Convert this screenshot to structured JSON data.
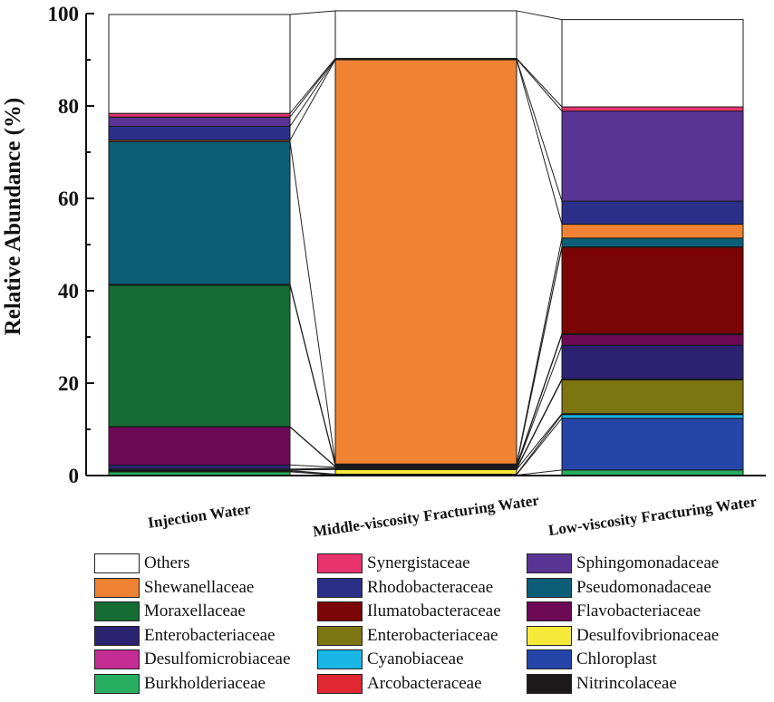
{
  "chart_data": {
    "type": "stacked-bar",
    "ylabel": "Relative Abundance (%)",
    "xlabel": "",
    "ylim": [
      0,
      100
    ],
    "yticks": [
      "0",
      "20",
      "40",
      "60",
      "80",
      "100"
    ],
    "categories": [
      "Injection Water",
      "Middle-viscosity Fracturing Water",
      "Low-viscosity Fracturing Water"
    ],
    "series": [
      {
        "name": "Burkholderiaceae",
        "color": "#27ae60",
        "values": [
          0.8,
          0.1,
          1.2
        ]
      },
      {
        "name": "Chloroplast",
        "color": "#2546a8",
        "values": [
          0.2,
          0.1,
          11.2
        ]
      },
      {
        "name": "Cyanobiaceae",
        "color": "#1ab6e5",
        "values": [
          0.1,
          0.1,
          0.8
        ]
      },
      {
        "name": "Desulfovibrionaceae",
        "color": "#f5ea3a",
        "values": [
          0.1,
          1.0,
          0.2
        ]
      },
      {
        "name": "Enterobacteriaceae",
        "color": "#7c7512",
        "values": [
          0.1,
          0.1,
          7.3
        ]
      },
      {
        "name": "Nitrincolaceae",
        "color": "#1c1a1a",
        "values": [
          0.1,
          0.2,
          0.2
        ]
      },
      {
        "name": "Enterobacteriaceae",
        "color": "#2b2370",
        "values": [
          0.9,
          0.2,
          7.3
        ]
      },
      {
        "name": "Flavobacteriaceae",
        "color": "#6d0a55",
        "values": [
          8.2,
          0.1,
          2.3
        ]
      },
      {
        "name": "Arcobacteraceae",
        "color": "#e02832",
        "values": [
          0.1,
          0.1,
          0.1
        ]
      },
      {
        "name": "Moraxellaceae",
        "color": "#156d34",
        "values": [
          30.6,
          0.1,
          0.1
        ]
      },
      {
        "name": "Ilumatobacteraceae",
        "color": "#7a0406",
        "values": [
          0.1,
          0.1,
          18.7
        ]
      },
      {
        "name": "Desulfomicrobiaceae",
        "color": "#c42d94",
        "values": [
          0.1,
          0.1,
          0.1
        ]
      },
      {
        "name": "Pseudomonadaceae",
        "color": "#0c5e78",
        "values": [
          30.9,
          0.2,
          1.9
        ]
      },
      {
        "name": "Shewanellaceae",
        "color": "#f08233",
        "values": [
          0.3,
          87.5,
          3.0
        ]
      },
      {
        "name": "Rhodobacteraceae",
        "color": "#2b2f88",
        "values": [
          3.0,
          0.1,
          5.0
        ]
      },
      {
        "name": "Sphingomonadaceae",
        "color": "#5a3495",
        "values": [
          2.0,
          0.1,
          19.5
        ]
      },
      {
        "name": "Synergistaceae",
        "color": "#e8336e",
        "values": [
          0.8,
          0.1,
          0.9
        ]
      },
      {
        "name": "Others",
        "color": "#ffffff",
        "values": [
          21.4,
          10.3,
          18.9
        ]
      }
    ],
    "legend": {
      "placement": "bottom",
      "columns": [
        [
          {
            "name": "Others",
            "color": "#ffffff"
          },
          {
            "name": "Shewanellaceae",
            "color": "#f08233"
          },
          {
            "name": "Moraxellaceae",
            "color": "#156d34"
          },
          {
            "name": "Enterobacteriaceae",
            "color": "#2b2370"
          },
          {
            "name": "Desulfomicrobiaceae",
            "color": "#c42d94"
          },
          {
            "name": "Burkholderiaceae",
            "color": "#27ae60"
          }
        ],
        [
          {
            "name": "Synergistaceae",
            "color": "#e8336e"
          },
          {
            "name": "Rhodobacteraceae",
            "color": "#2b2f88"
          },
          {
            "name": "Ilumatobacteraceae",
            "color": "#7a0406"
          },
          {
            "name": "Enterobacteriaceae",
            "color": "#7c7512"
          },
          {
            "name": "Cyanobiaceae",
            "color": "#1ab6e5"
          },
          {
            "name": "Arcobacteraceae",
            "color": "#e02832"
          }
        ],
        [
          {
            "name": "Sphingomonadaceae",
            "color": "#5a3495"
          },
          {
            "name": "Pseudomonadaceae",
            "color": "#0c5e78"
          },
          {
            "name": "Flavobacteriaceae",
            "color": "#6d0a55"
          },
          {
            "name": "Desulfovibrionaceae",
            "color": "#f5ea3a"
          },
          {
            "name": "Chloroplast",
            "color": "#2546a8"
          },
          {
            "name": "Nitrincolaceae",
            "color": "#1c1a1a"
          }
        ]
      ]
    }
  }
}
